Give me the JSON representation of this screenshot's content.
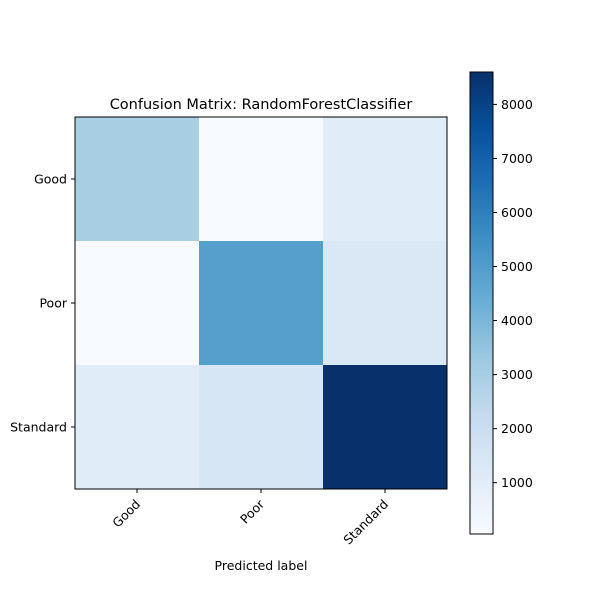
{
  "chart_data": {
    "type": "heatmap",
    "title": "Confusion Matrix: RandomForestClassifier",
    "xlabel": "Predicted label",
    "ylabel": "",
    "x_categories": [
      "Good",
      "Poor",
      "Standard"
    ],
    "y_categories": [
      "Good",
      "Poor",
      "Standard"
    ],
    "values": [
      [
        3000,
        100,
        1050
      ],
      [
        100,
        4900,
        1300
      ],
      [
        1050,
        1450,
        8600
      ]
    ],
    "colormap": "Blues",
    "color_range": [
      50,
      8600
    ],
    "colorbar_ticks": [
      1000,
      2000,
      3000,
      4000,
      5000,
      6000,
      7000,
      8000
    ],
    "colorbar_tick_labels": [
      "1000",
      "2000",
      "3000",
      "4000",
      "5000",
      "6000",
      "7000",
      "8000"
    ],
    "grid": false
  }
}
